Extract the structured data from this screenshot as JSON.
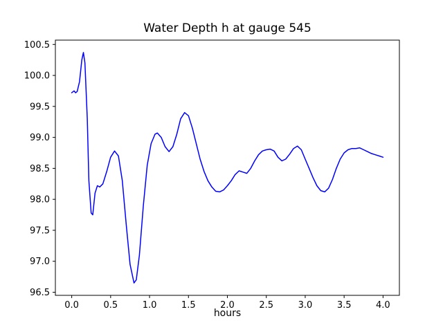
{
  "chart_data": {
    "type": "line",
    "title": "Water Depth h at gauge 545",
    "xlabel": "hours",
    "ylabel": "",
    "line_color": "#0000ff",
    "axis_color": "#000000",
    "grid": false,
    "legend": "none",
    "xlim": [
      -0.21,
      4.21
    ],
    "ylim": [
      96.45,
      100.57
    ],
    "xticks": [
      0.0,
      0.5,
      1.0,
      1.5,
      2.0,
      2.5,
      3.0,
      3.5,
      4.0
    ],
    "yticks": [
      96.5,
      97.0,
      97.5,
      98.0,
      98.5,
      99.0,
      99.5,
      100.0,
      100.5
    ],
    "x": [
      0.0,
      0.03,
      0.05,
      0.07,
      0.1,
      0.13,
      0.15,
      0.17,
      0.2,
      0.22,
      0.25,
      0.27,
      0.3,
      0.33,
      0.36,
      0.4,
      0.45,
      0.5,
      0.55,
      0.6,
      0.65,
      0.7,
      0.75,
      0.8,
      0.83,
      0.87,
      0.92,
      0.97,
      1.02,
      1.07,
      1.1,
      1.15,
      1.2,
      1.25,
      1.3,
      1.35,
      1.4,
      1.45,
      1.5,
      1.55,
      1.6,
      1.65,
      1.7,
      1.75,
      1.8,
      1.85,
      1.9,
      1.95,
      2.0,
      2.05,
      2.1,
      2.15,
      2.2,
      2.25,
      2.3,
      2.35,
      2.4,
      2.45,
      2.5,
      2.55,
      2.6,
      2.65,
      2.7,
      2.75,
      2.8,
      2.85,
      2.9,
      2.95,
      3.0,
      3.05,
      3.1,
      3.15,
      3.2,
      3.25,
      3.3,
      3.35,
      3.4,
      3.45,
      3.5,
      3.55,
      3.6,
      3.65,
      3.7,
      3.75,
      3.8,
      3.85,
      3.9,
      3.95,
      4.0
    ],
    "y": [
      99.72,
      99.75,
      99.72,
      99.74,
      99.9,
      100.25,
      100.37,
      100.2,
      99.3,
      98.3,
      97.78,
      97.75,
      98.1,
      98.22,
      98.2,
      98.25,
      98.45,
      98.68,
      98.78,
      98.7,
      98.3,
      97.6,
      96.95,
      96.65,
      96.7,
      97.1,
      97.9,
      98.55,
      98.9,
      99.05,
      99.07,
      99.0,
      98.85,
      98.77,
      98.85,
      99.05,
      99.3,
      99.4,
      99.35,
      99.15,
      98.9,
      98.65,
      98.45,
      98.3,
      98.2,
      98.13,
      98.12,
      98.15,
      98.22,
      98.3,
      98.4,
      98.46,
      98.44,
      98.42,
      98.5,
      98.62,
      98.72,
      98.78,
      98.8,
      98.81,
      98.78,
      98.68,
      98.62,
      98.65,
      98.73,
      98.82,
      98.86,
      98.8,
      98.65,
      98.5,
      98.35,
      98.22,
      98.14,
      98.12,
      98.18,
      98.32,
      98.5,
      98.65,
      98.75,
      98.8,
      98.82,
      98.82,
      98.83,
      98.8,
      98.77,
      98.74,
      98.72,
      98.7,
      98.68
    ]
  }
}
